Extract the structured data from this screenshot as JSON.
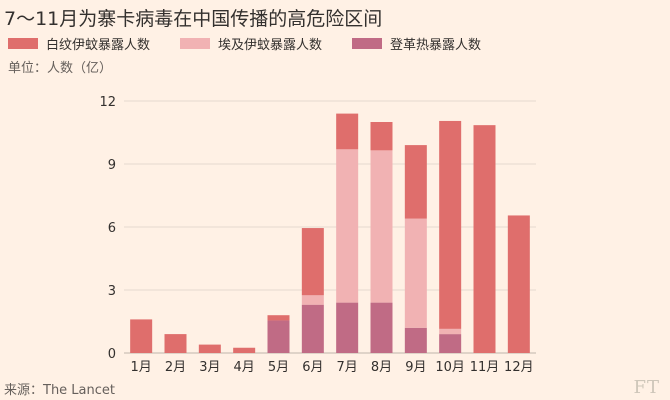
{
  "title": "7～11月为寨卡病毒在中国传播的高危险区间",
  "unit_label": "单位：人数（亿）",
  "source": "来源：The Lancet",
  "logo": "FT",
  "colors": {
    "background": "#fff1e5",
    "series_1": "#df6e6c",
    "series_2": "#f1b2b3",
    "series_3": "#c06b85",
    "grid": "#e6d9ce"
  },
  "chart_data": {
    "type": "bar",
    "stacked": true,
    "categories": [
      "1月",
      "2月",
      "3月",
      "4月",
      "5月",
      "6月",
      "7月",
      "8月",
      "9月",
      "10月",
      "11月",
      "12月"
    ],
    "series": [
      {
        "name": "登革热暴露人数",
        "values": [
          0,
          0,
          0,
          0,
          1.55,
          2.3,
          2.4,
          2.4,
          1.2,
          0.9,
          0,
          0
        ]
      },
      {
        "name": "埃及伊蚊暴露人数",
        "values": [
          0,
          0,
          0,
          0,
          0,
          0.45,
          7.3,
          7.25,
          5.2,
          0.25,
          0,
          0
        ]
      },
      {
        "name": "白纹伊蚊暴露人数",
        "values": [
          1.6,
          0.9,
          0.4,
          0.25,
          0.25,
          3.2,
          1.7,
          1.35,
          3.5,
          9.9,
          10.85,
          6.55
        ]
      }
    ],
    "legend": [
      "白纹伊蚊暴露人数",
      "埃及伊蚊暴露人数",
      "登革热暴露人数"
    ],
    "ylim": [
      0,
      12
    ],
    "yticks": [
      0,
      3,
      6,
      9,
      12
    ],
    "grid": true,
    "legend_position": "top-left"
  }
}
